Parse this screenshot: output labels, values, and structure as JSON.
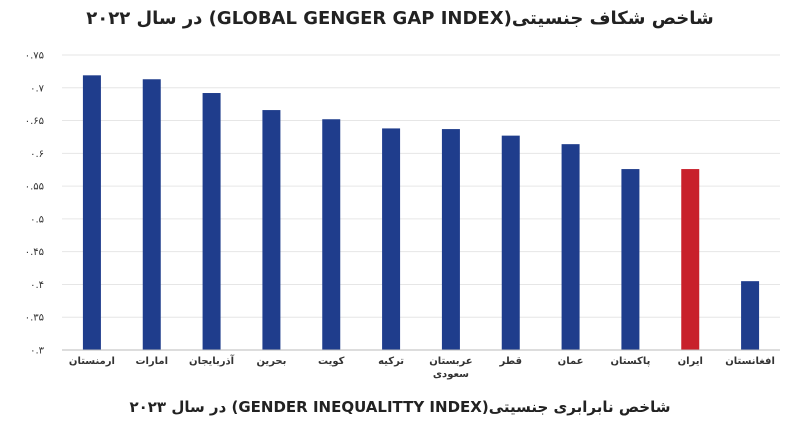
{
  "header": {
    "title": "شاخص شکاف جنسیتی(GLOBAL GENGER GAP INDEX)  در سال ۲۰۲۲"
  },
  "footer": {
    "caption": "شاخص نابرابری جنسیتی(GENDER INEQUALITTY INDEX) در سال ۲۰۲۳"
  },
  "chart_data": {
    "type": "bar",
    "title": "شاخص شکاف جنسیتی(GLOBAL GENGER GAP INDEX)  در سال ۲۰۲۲",
    "categories": [
      "ارمنستان",
      "امارات",
      "آذربایجان",
      "بحرین",
      "کویت",
      "ترکیه",
      "عربستان سعودی",
      "قطر",
      "عمان",
      "پاکستان",
      "ایران",
      "افغانستان"
    ],
    "category_lines": [
      [
        "ارمنستان"
      ],
      [
        "امارات"
      ],
      [
        "آذربایجان"
      ],
      [
        "بحرین"
      ],
      [
        "کویت"
      ],
      [
        "ترکیه"
      ],
      [
        "عربستان",
        "سعودی"
      ],
      [
        "قطر"
      ],
      [
        "عمان"
      ],
      [
        "پاکستان"
      ],
      [
        "ایران"
      ],
      [
        "افغانستان"
      ]
    ],
    "values": [
      0.719,
      0.713,
      0.692,
      0.666,
      0.652,
      0.638,
      0.637,
      0.627,
      0.614,
      0.576,
      0.576,
      0.405
    ],
    "highlight_index": 10,
    "colors": {
      "bar": "#1f3d8c",
      "highlight": "#c8202b"
    },
    "y_ticks": [
      {
        "value": 0.3,
        "label": "۰.۳"
      },
      {
        "value": 0.35,
        "label": "۰.۳۵"
      },
      {
        "value": 0.4,
        "label": "۰.۴"
      },
      {
        "value": 0.45,
        "label": "۰.۴۵"
      },
      {
        "value": 0.5,
        "label": "۰.۵"
      },
      {
        "value": 0.55,
        "label": "۰.۵۵"
      },
      {
        "value": 0.6,
        "label": "۰.۶"
      },
      {
        "value": 0.65,
        "label": "۰.۶۵"
      },
      {
        "value": 0.7,
        "label": "۰.۷"
      },
      {
        "value": 0.75,
        "label": "۰.۷۵"
      }
    ],
    "ylim": [
      0.3,
      0.75
    ],
    "grid": true,
    "xlabel": "",
    "ylabel": ""
  }
}
